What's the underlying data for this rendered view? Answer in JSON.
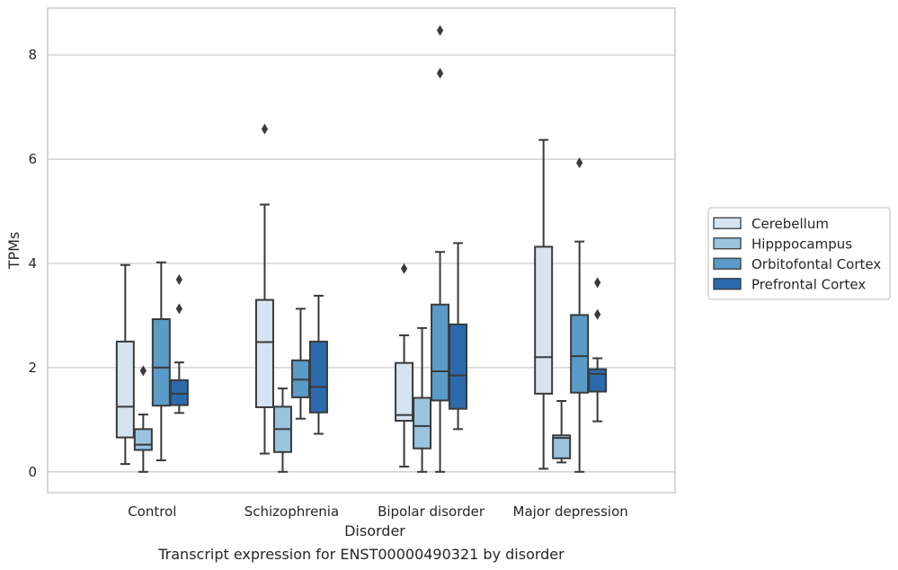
{
  "caption": "Transcript expression for ENST00000490321 by disorder",
  "chart_data": {
    "type": "box",
    "title": "",
    "xlabel": "Disorder",
    "ylabel": "TPMs",
    "ylim": [
      -0.4,
      8.9
    ],
    "yticks": [
      0,
      2,
      4,
      6,
      8
    ],
    "grid": "horizontal",
    "legend_position": "right",
    "categories": [
      "Control",
      "Schizophrenia",
      "Bipolar disorder",
      "Major depression"
    ],
    "series": [
      {
        "name": "Cerebellum",
        "color": "#d6e3f0",
        "boxes": [
          {
            "whislo": 0.15,
            "q1": 0.66,
            "med": 1.25,
            "q3": 2.5,
            "whishi": 3.97,
            "fliers": []
          },
          {
            "whislo": 0.35,
            "q1": 1.24,
            "med": 2.49,
            "q3": 3.3,
            "whishi": 5.13,
            "fliers": [
              6.58
            ]
          },
          {
            "whislo": 0.1,
            "q1": 0.98,
            "med": 1.09,
            "q3": 2.09,
            "whishi": 2.62,
            "fliers": [
              3.9
            ]
          },
          {
            "whislo": 0.06,
            "q1": 1.5,
            "med": 2.2,
            "q3": 4.32,
            "whishi": 6.37,
            "fliers": []
          }
        ]
      },
      {
        "name": "Hipppocampus",
        "color": "#9ac3de",
        "boxes": [
          {
            "whislo": 0.0,
            "q1": 0.42,
            "med": 0.52,
            "q3": 0.82,
            "whishi": 1.1,
            "fliers": [
              1.94
            ]
          },
          {
            "whislo": 0.0,
            "q1": 0.38,
            "med": 0.82,
            "q3": 1.25,
            "whishi": 1.6,
            "fliers": []
          },
          {
            "whislo": 0.0,
            "q1": 0.45,
            "med": 0.88,
            "q3": 1.42,
            "whishi": 2.76,
            "fliers": []
          },
          {
            "whislo": 0.18,
            "q1": 0.26,
            "med": 0.65,
            "q3": 0.7,
            "whishi": 1.36,
            "fliers": []
          }
        ]
      },
      {
        "name": "Orbitofontal Cortex",
        "color": "#5b9bc8",
        "boxes": [
          {
            "whislo": 0.22,
            "q1": 1.27,
            "med": 2.0,
            "q3": 2.93,
            "whishi": 4.02,
            "fliers": []
          },
          {
            "whislo": 1.02,
            "q1": 1.43,
            "med": 1.77,
            "q3": 2.14,
            "whishi": 3.13,
            "fliers": []
          },
          {
            "whislo": 0.0,
            "q1": 1.37,
            "med": 1.93,
            "q3": 3.21,
            "whishi": 4.22,
            "fliers": [
              7.65,
              8.47
            ]
          },
          {
            "whislo": 0.0,
            "q1": 1.52,
            "med": 2.22,
            "q3": 3.01,
            "whishi": 4.42,
            "fliers": [
              5.93
            ]
          }
        ]
      },
      {
        "name": "Prefrontal Cortex",
        "color": "#2b6aad",
        "boxes": [
          {
            "whislo": 1.13,
            "q1": 1.28,
            "med": 1.5,
            "q3": 1.76,
            "whishi": 2.1,
            "fliers": [
              3.13,
              3.69
            ]
          },
          {
            "whislo": 0.73,
            "q1": 1.14,
            "med": 1.63,
            "q3": 2.5,
            "whishi": 3.38,
            "fliers": []
          },
          {
            "whislo": 0.82,
            "q1": 1.21,
            "med": 1.85,
            "q3": 2.83,
            "whishi": 4.39,
            "fliers": []
          },
          {
            "whislo": 0.97,
            "q1": 1.54,
            "med": 1.88,
            "q3": 1.97,
            "whishi": 2.18,
            "fliers": [
              3.02,
              3.63
            ]
          }
        ]
      }
    ]
  }
}
